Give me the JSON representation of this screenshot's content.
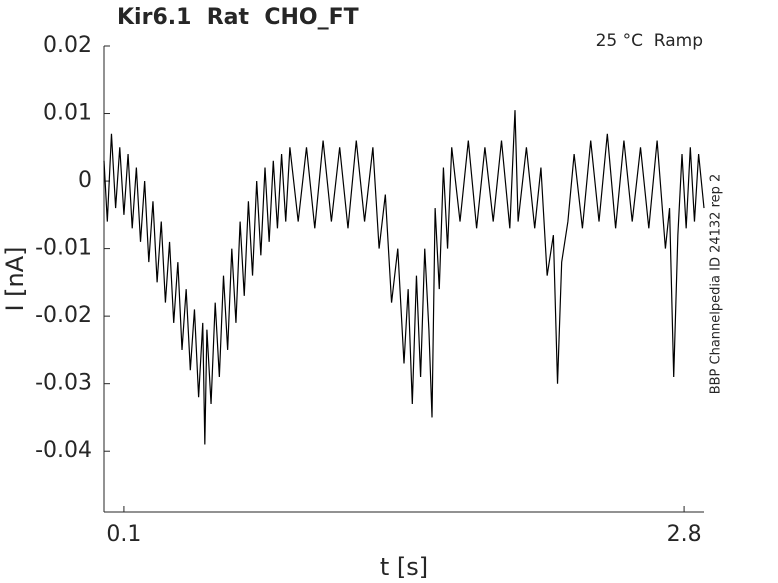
{
  "chart_data": {
    "type": "line",
    "title": "Kir6.1  Rat  CHO_FT",
    "annotation": "25 °C  Ramp",
    "side_note": "BBP Channelpedia ID 24132 rep 2",
    "x_label": "t [s]",
    "y_label": "I [nA]",
    "xlim": [
      0.004,
      2.896
    ],
    "ylim": [
      -0.049,
      0.02
    ],
    "xticks": [
      0.1,
      2.8
    ],
    "yticks": [
      0.02,
      0.01,
      0,
      -0.01,
      -0.02,
      -0.03,
      -0.04
    ],
    "grid": false,
    "series": [
      {
        "color": "#000000",
        "x": [
          0.004,
          0.02,
          0.04,
          0.06,
          0.08,
          0.1,
          0.12,
          0.14,
          0.16,
          0.18,
          0.2,
          0.22,
          0.24,
          0.26,
          0.28,
          0.3,
          0.32,
          0.34,
          0.36,
          0.38,
          0.4,
          0.42,
          0.44,
          0.46,
          0.48,
          0.49,
          0.5,
          0.52,
          0.54,
          0.56,
          0.58,
          0.6,
          0.62,
          0.64,
          0.66,
          0.68,
          0.7,
          0.72,
          0.74,
          0.76,
          0.78,
          0.8,
          0.82,
          0.84,
          0.86,
          0.88,
          0.9,
          0.94,
          0.98,
          1.02,
          1.06,
          1.1,
          1.14,
          1.18,
          1.22,
          1.26,
          1.3,
          1.33,
          1.36,
          1.39,
          1.42,
          1.45,
          1.47,
          1.49,
          1.51,
          1.53,
          1.55,
          1.57,
          1.585,
          1.6,
          1.62,
          1.64,
          1.66,
          1.68,
          1.72,
          1.76,
          1.8,
          1.84,
          1.88,
          1.92,
          1.96,
          1.985,
          2.0,
          2.04,
          2.08,
          2.11,
          2.14,
          2.17,
          2.19,
          2.21,
          2.24,
          2.27,
          2.31,
          2.35,
          2.39,
          2.43,
          2.47,
          2.51,
          2.55,
          2.59,
          2.63,
          2.67,
          2.71,
          2.73,
          2.75,
          2.77,
          2.79,
          2.81,
          2.83,
          2.85,
          2.87,
          2.896
        ],
        "values": [
          0.003,
          -0.006,
          0.007,
          -0.004,
          0.005,
          -0.005,
          0.004,
          -0.007,
          0.002,
          -0.009,
          0.0,
          -0.012,
          -0.003,
          -0.015,
          -0.006,
          -0.018,
          -0.009,
          -0.021,
          -0.012,
          -0.025,
          -0.016,
          -0.028,
          -0.019,
          -0.032,
          -0.021,
          -0.039,
          -0.022,
          -0.033,
          -0.018,
          -0.029,
          -0.014,
          -0.025,
          -0.01,
          -0.021,
          -0.006,
          -0.017,
          -0.003,
          -0.014,
          0.0,
          -0.011,
          0.002,
          -0.009,
          0.003,
          -0.007,
          0.004,
          -0.006,
          0.005,
          -0.006,
          0.005,
          -0.007,
          0.006,
          -0.006,
          0.005,
          -0.007,
          0.006,
          -0.006,
          0.005,
          -0.01,
          -0.002,
          -0.018,
          -0.01,
          -0.027,
          -0.016,
          -0.033,
          -0.014,
          -0.029,
          -0.01,
          -0.022,
          -0.035,
          -0.004,
          -0.016,
          0.002,
          -0.01,
          0.005,
          -0.006,
          0.006,
          -0.007,
          0.005,
          -0.006,
          0.006,
          -0.007,
          0.0105,
          -0.006,
          0.005,
          -0.007,
          0.002,
          -0.014,
          -0.008,
          -0.03,
          -0.012,
          -0.006,
          0.004,
          -0.007,
          0.006,
          -0.006,
          0.007,
          -0.007,
          0.006,
          -0.006,
          0.005,
          -0.007,
          0.006,
          -0.01,
          -0.004,
          -0.029,
          -0.008,
          0.004,
          -0.007,
          0.005,
          -0.006,
          0.004,
          -0.004
        ]
      }
    ]
  }
}
